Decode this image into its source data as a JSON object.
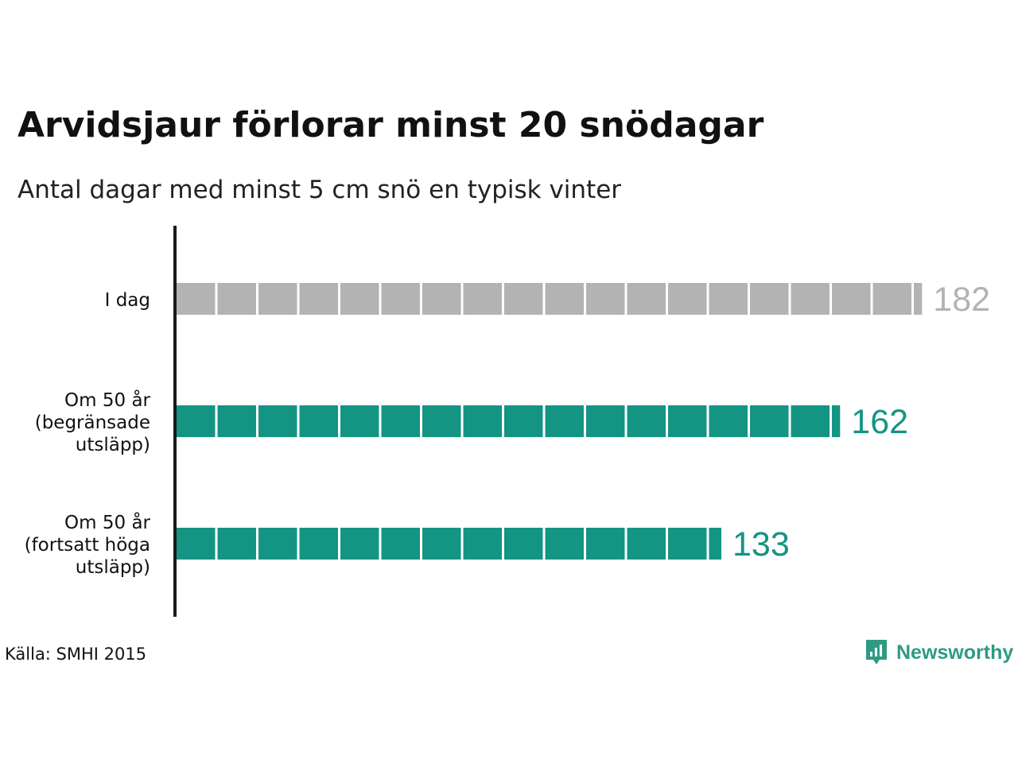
{
  "title": "Arvidsjaur förlorar minst 20 snödagar",
  "subtitle": "Antal dagar med minst 5 cm snö en typisk vinter",
  "source": "Källa: SMHI 2015",
  "brand": {
    "name": "Newsworthy",
    "icon": "newsworthy-logo-icon",
    "color": "#2e9a84"
  },
  "colors": {
    "today": "#b3b3b3",
    "future": "#149483",
    "today_label": "#b3b3b3",
    "future_label": "#149483",
    "axis": "#1a1a1a"
  },
  "chart_data": {
    "type": "bar",
    "orientation": "horizontal",
    "categories": [
      [
        "I dag"
      ],
      [
        "Om 50 år",
        "(begränsade",
        "utsläpp)"
      ],
      [
        "Om 50 år",
        "(fortsatt höga",
        "utsläpp)"
      ]
    ],
    "values": [
      182,
      162,
      133
    ],
    "data_labels": [
      "182",
      "162",
      "133"
    ],
    "segment_size": 10,
    "xlim": [
      0,
      182
    ],
    "grid": false,
    "legend": "none"
  }
}
